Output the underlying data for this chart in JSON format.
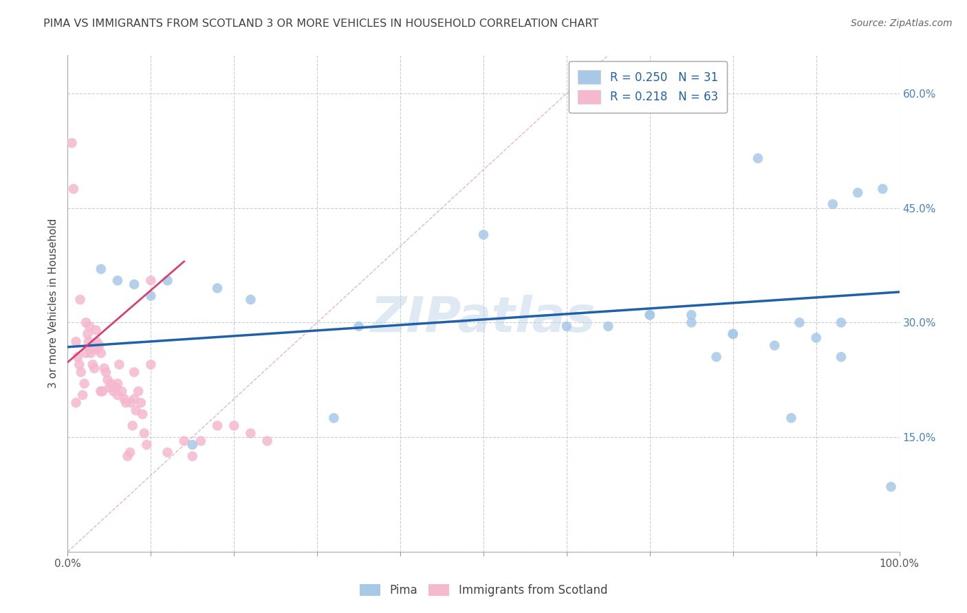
{
  "title": "PIMA VS IMMIGRANTS FROM SCOTLAND 3 OR MORE VEHICLES IN HOUSEHOLD CORRELATION CHART",
  "source": "Source: ZipAtlas.com",
  "ylabel": "3 or more Vehicles in Household",
  "xlim": [
    0,
    1.0
  ],
  "ylim": [
    0,
    0.65
  ],
  "xticks": [
    0.0,
    0.1,
    0.2,
    0.3,
    0.4,
    0.5,
    0.6,
    0.7,
    0.8,
    0.9,
    1.0
  ],
  "xticklabels": [
    "0.0%",
    "",
    "",
    "",
    "",
    "",
    "",
    "",
    "",
    "",
    "100.0%"
  ],
  "yticks": [
    0.0,
    0.15,
    0.3,
    0.45,
    0.6
  ],
  "yticklabels_right": [
    "",
    "15.0%",
    "30.0%",
    "45.0%",
    "60.0%"
  ],
  "legend_r1": "R = 0.250",
  "legend_n1": "N = 31",
  "legend_r2": "R = 0.218",
  "legend_n2": "N = 63",
  "color_blue": "#a8c8e8",
  "color_pink": "#f5b8ce",
  "color_blue_line": "#2060a8",
  "color_pink_line": "#d84070",
  "color_diag": "#e0b0b8",
  "watermark": "ZIPatlas",
  "blue_line_x": [
    0.0,
    1.0
  ],
  "blue_line_y": [
    0.268,
    0.34
  ],
  "pink_line_x": [
    0.0,
    0.14
  ],
  "pink_line_y": [
    0.248,
    0.38
  ],
  "blue_scatter_x": [
    0.04,
    0.06,
    0.08,
    0.1,
    0.12,
    0.15,
    0.18,
    0.22,
    0.32,
    0.35,
    0.5,
    0.6,
    0.65,
    0.7,
    0.75,
    0.78,
    0.8,
    0.83,
    0.85,
    0.87,
    0.88,
    0.9,
    0.92,
    0.93,
    0.95,
    0.98,
    0.99,
    0.7,
    0.75,
    0.8,
    0.93
  ],
  "blue_scatter_y": [
    0.37,
    0.355,
    0.35,
    0.335,
    0.355,
    0.14,
    0.345,
    0.33,
    0.175,
    0.295,
    0.415,
    0.295,
    0.295,
    0.31,
    0.31,
    0.255,
    0.285,
    0.515,
    0.27,
    0.175,
    0.3,
    0.28,
    0.455,
    0.3,
    0.47,
    0.475,
    0.085,
    0.31,
    0.3,
    0.285,
    0.255
  ],
  "pink_scatter_x": [
    0.005,
    0.007,
    0.01,
    0.01,
    0.012,
    0.014,
    0.015,
    0.016,
    0.018,
    0.02,
    0.022,
    0.022,
    0.024,
    0.025,
    0.026,
    0.027,
    0.028,
    0.03,
    0.03,
    0.032,
    0.034,
    0.035,
    0.036,
    0.038,
    0.04,
    0.04,
    0.042,
    0.044,
    0.046,
    0.048,
    0.05,
    0.052,
    0.055,
    0.058,
    0.06,
    0.062,
    0.065,
    0.068,
    0.07,
    0.072,
    0.075,
    0.076,
    0.078,
    0.08,
    0.082,
    0.085,
    0.088,
    0.09,
    0.092,
    0.095,
    0.1,
    0.12,
    0.14,
    0.15,
    0.16,
    0.18,
    0.2,
    0.22,
    0.24,
    0.1,
    0.08,
    0.06,
    0.04
  ],
  "pink_scatter_y": [
    0.535,
    0.475,
    0.275,
    0.195,
    0.255,
    0.245,
    0.33,
    0.235,
    0.205,
    0.22,
    0.3,
    0.26,
    0.285,
    0.275,
    0.295,
    0.265,
    0.26,
    0.265,
    0.245,
    0.24,
    0.29,
    0.275,
    0.265,
    0.27,
    0.26,
    0.21,
    0.21,
    0.24,
    0.235,
    0.225,
    0.215,
    0.22,
    0.21,
    0.215,
    0.205,
    0.245,
    0.21,
    0.2,
    0.195,
    0.125,
    0.13,
    0.195,
    0.165,
    0.2,
    0.185,
    0.21,
    0.195,
    0.18,
    0.155,
    0.14,
    0.355,
    0.13,
    0.145,
    0.125,
    0.145,
    0.165,
    0.165,
    0.155,
    0.145,
    0.245,
    0.235,
    0.22,
    0.21
  ]
}
